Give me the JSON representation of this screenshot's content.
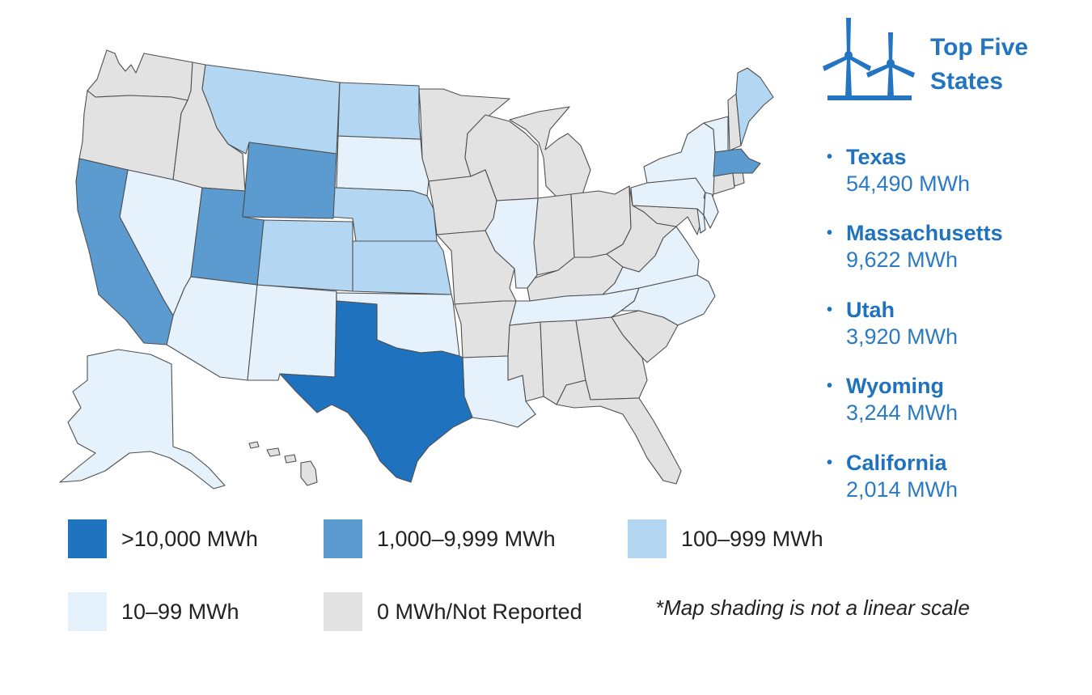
{
  "header": {
    "title_line1": "Top Five",
    "title_line2": "States"
  },
  "top_states": [
    {
      "name": "Texas",
      "value": "54,490 MWh"
    },
    {
      "name": "Massachusetts",
      "value": "9,622 MWh"
    },
    {
      "name": "Utah",
      "value": "3,920 MWh"
    },
    {
      "name": "Wyoming",
      "value": "3,244 MWh"
    },
    {
      "name": "California",
      "value": "2,014 MWh"
    }
  ],
  "legend": {
    "items": [
      {
        "label": ">10,000 MWh",
        "color": "#1f72bd"
      },
      {
        "label": "1,000–9,999 MWh",
        "color": "#5b9bd0"
      },
      {
        "label": "100–999 MWh",
        "color": "#b3d6f2"
      },
      {
        "label": "10–99 MWh",
        "color": "#e5f1fb"
      },
      {
        "label": "0 MWh/Not Reported",
        "color": "#e2e2e3"
      }
    ],
    "note": "*Map shading is not a linear scale"
  },
  "state_categories": {
    ">10,000 MWh": [
      "Texas"
    ],
    "1,000–9,999 MWh": [
      "Massachusetts",
      "Utah",
      "Wyoming",
      "California"
    ],
    "100–999 MWh": [
      "Montana",
      "North Dakota",
      "Nebraska",
      "Colorado",
      "Kansas",
      "Maine"
    ],
    "10–99 MWh": [
      "Nevada",
      "Arizona",
      "New Mexico",
      "South Dakota",
      "Oklahoma",
      "Louisiana",
      "Illinois",
      "Tennessee",
      "Virginia",
      "North Carolina",
      "Pennsylvania",
      "New York",
      "Vermont",
      "New Jersey",
      "Delaware",
      "Alaska"
    ],
    "0 MWh/Not Reported": [
      "Washington",
      "Oregon",
      "Idaho",
      "Minnesota",
      "Iowa",
      "Missouri",
      "Arkansas",
      "Wisconsin",
      "Michigan",
      "Indiana",
      "Ohio",
      "Kentucky",
      "West Virginia",
      "Maryland",
      "Mississippi",
      "Alabama",
      "Georgia",
      "South Carolina",
      "Florida",
      "New Hampshire",
      "Connecticut",
      "Rhode Island",
      "Hawaii"
    ]
  }
}
